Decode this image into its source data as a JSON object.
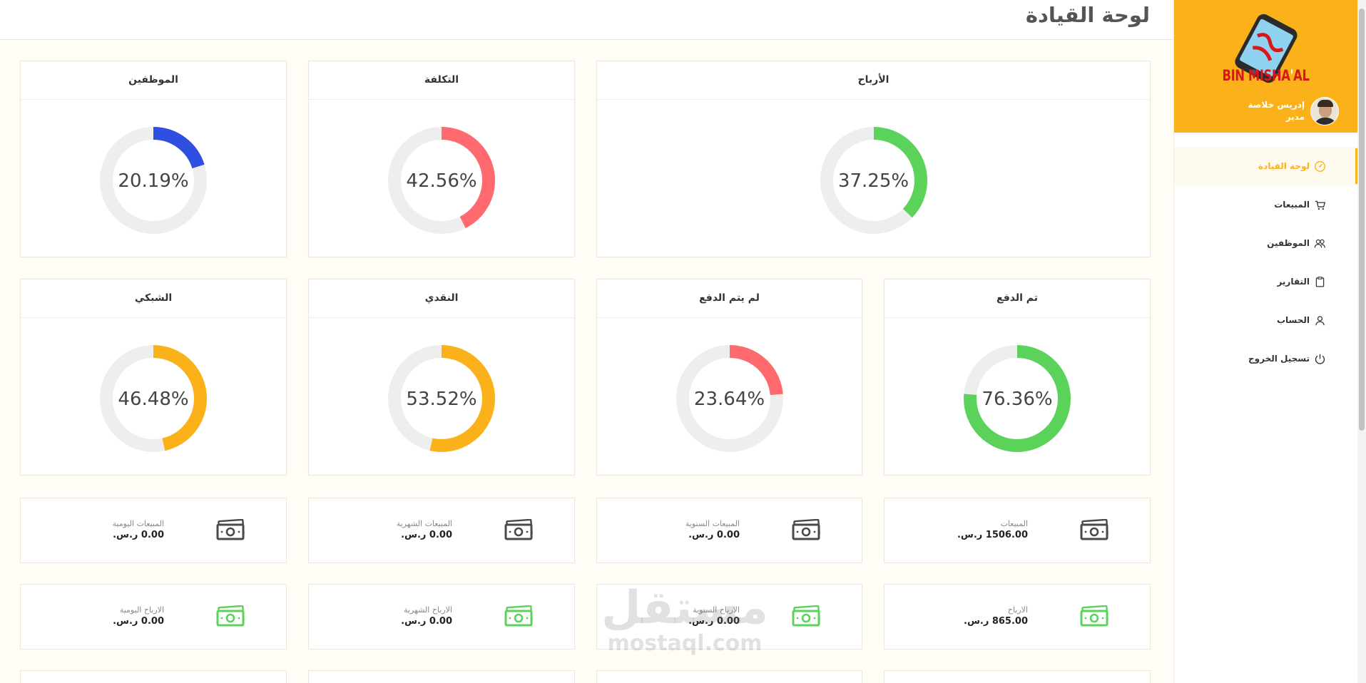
{
  "header": {
    "title": "لوحة القيادة"
  },
  "sidebar": {
    "brand": {
      "main": "BIN MISHA",
      "apostrophe": "'",
      "tail": "AL"
    },
    "user": {
      "name": "إدريس خلاصة",
      "role": "مدير"
    },
    "items": [
      {
        "label": "لوحة القيادة",
        "icon": "dashboard-gauge-icon",
        "active": true
      },
      {
        "label": "المبيعات",
        "icon": "shopping-cart-icon",
        "active": false
      },
      {
        "label": "الموظفين",
        "icon": "users-icon",
        "active": false
      },
      {
        "label": "التقارير",
        "icon": "clipboard-icon",
        "active": false
      },
      {
        "label": "الحساب",
        "icon": "user-icon",
        "active": false
      },
      {
        "label": "تسجيل الخروج",
        "icon": "power-icon",
        "active": false
      }
    ]
  },
  "donuts": [
    {
      "title": "الأرباح",
      "value": 37.25,
      "label": "37.25%",
      "color": "#5bd35b"
    },
    {
      "title": "التكلفة",
      "value": 42.56,
      "label": "42.56%",
      "color": "#ff6a6f"
    },
    {
      "title": "الموظفين",
      "value": 20.19,
      "label": "20.19%",
      "color": "#2f4fe0"
    },
    {
      "title": "تم الدفع",
      "value": 76.36,
      "label": "76.36%",
      "color": "#5bd35b"
    },
    {
      "title": "لم يتم الدفع",
      "value": 23.64,
      "label": "23.64%",
      "color": "#ff6a6f"
    },
    {
      "title": "النقدي",
      "value": 53.52,
      "label": "53.52%",
      "color": "#fbb21a"
    },
    {
      "title": "الشبكي",
      "value": 46.48,
      "label": "46.48%",
      "color": "#fbb21a"
    }
  ],
  "colors": {
    "accent": "#fbb21a",
    "track": "#eeeeee",
    "money_dark": "#4a4a4a",
    "money_green": "#5bd35b"
  },
  "stats": [
    {
      "label": "المبيعات",
      "value": "1506.00 ر.س.",
      "icon": "money-icon-dark"
    },
    {
      "label": "المبيعات السنوية",
      "value": "0.00 ر.س.",
      "icon": "money-icon-dark"
    },
    {
      "label": "المبيعات الشهرية",
      "value": "0.00 ر.س.",
      "icon": "money-icon-dark"
    },
    {
      "label": "المبيعات اليومية",
      "value": "0.00 ر.س.",
      "icon": "money-icon-dark"
    },
    {
      "label": "الارباح",
      "value": "865.00 ر.س.",
      "icon": "money-icon-green"
    },
    {
      "label": "الارباح السنوية",
      "value": "0.00 ر.س.",
      "icon": "money-icon-green"
    },
    {
      "label": "الارباح الشهرية",
      "value": "0.00 ر.س.",
      "icon": "money-icon-green"
    },
    {
      "label": "الارباح اليومية",
      "value": "0.00 ر.س.",
      "icon": "money-icon-green"
    }
  ],
  "watermark": {
    "arabic": "مستقل",
    "latin": "mostaql.com"
  }
}
